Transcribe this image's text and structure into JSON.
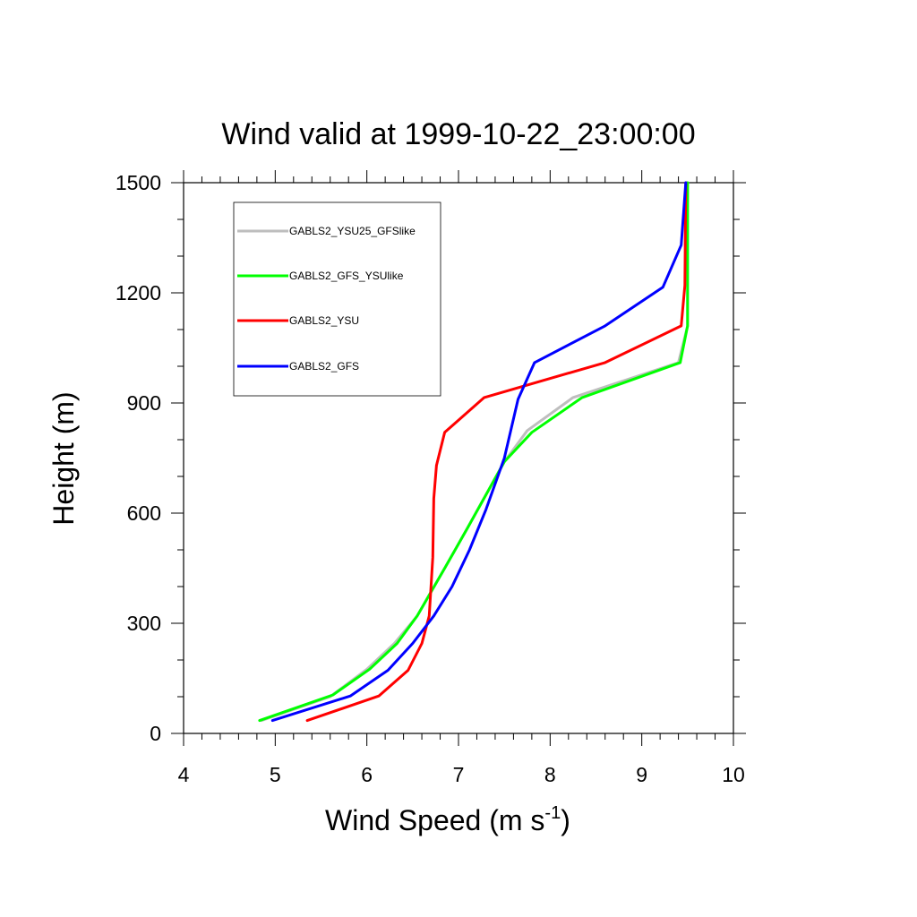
{
  "chart_data": {
    "type": "line",
    "title": "Wind valid at 1999-10-22_23:00:00",
    "xlabel": "Wind Speed (m s",
    "xlabel_superscript": "-1",
    "xlabel_suffix": ")",
    "ylabel": "Height (m)",
    "xlim": [
      4,
      10
    ],
    "ylim": [
      0,
      1500
    ],
    "xticks": [
      4,
      5,
      6,
      7,
      8,
      9,
      10
    ],
    "yticks": [
      0,
      300,
      600,
      900,
      1200,
      1500
    ],
    "xtick_labels": [
      "4",
      "5",
      "6",
      "7",
      "8",
      "9",
      "10"
    ],
    "ytick_labels": [
      "0",
      "300",
      "600",
      "900",
      "1200",
      "1500"
    ],
    "grid": false,
    "legend_position": "top-left",
    "series": [
      {
        "name": "GABLS2_YSU25_GFSlike",
        "color": "#bebebe",
        "points": [
          [
            4.85,
            35
          ],
          [
            5.6,
            100
          ],
          [
            6.0,
            175
          ],
          [
            6.3,
            245
          ],
          [
            6.55,
            320
          ],
          [
            6.85,
            450
          ],
          [
            7.1,
            560
          ],
          [
            7.3,
            650
          ],
          [
            7.5,
            740
          ],
          [
            7.75,
            825
          ],
          [
            8.25,
            915
          ],
          [
            9.4,
            1010
          ],
          [
            9.5,
            1110
          ],
          [
            9.5,
            1500
          ]
        ]
      },
      {
        "name": "GABLS2_GFS_YSUlike",
        "color": "#00ff00",
        "points": [
          [
            4.83,
            35
          ],
          [
            5.63,
            105
          ],
          [
            6.03,
            175
          ],
          [
            6.33,
            245
          ],
          [
            6.55,
            320
          ],
          [
            6.85,
            450
          ],
          [
            7.1,
            560
          ],
          [
            7.3,
            650
          ],
          [
            7.5,
            740
          ],
          [
            7.8,
            820
          ],
          [
            8.35,
            915
          ],
          [
            9.42,
            1010
          ],
          [
            9.5,
            1110
          ],
          [
            9.5,
            1500
          ]
        ]
      },
      {
        "name": "GABLS2_YSU",
        "color": "#ff0000",
        "points": [
          [
            5.35,
            35
          ],
          [
            6.13,
            102
          ],
          [
            6.45,
            172
          ],
          [
            6.6,
            245
          ],
          [
            6.68,
            320
          ],
          [
            6.72,
            480
          ],
          [
            6.73,
            640
          ],
          [
            6.76,
            730
          ],
          [
            6.85,
            820
          ],
          [
            7.28,
            915
          ],
          [
            8.6,
            1010
          ],
          [
            9.43,
            1110
          ],
          [
            9.47,
            1220
          ],
          [
            9.48,
            1500
          ]
        ]
      },
      {
        "name": "GABLS2_GFS",
        "color": "#0000ff",
        "points": [
          [
            4.97,
            35
          ],
          [
            5.82,
            102
          ],
          [
            6.23,
            172
          ],
          [
            6.5,
            245
          ],
          [
            6.73,
            320
          ],
          [
            6.93,
            400
          ],
          [
            7.12,
            500
          ],
          [
            7.3,
            610
          ],
          [
            7.5,
            750
          ],
          [
            7.65,
            910
          ],
          [
            7.83,
            1010
          ],
          [
            8.6,
            1110
          ],
          [
            9.23,
            1215
          ],
          [
            9.43,
            1330
          ],
          [
            9.48,
            1500
          ]
        ]
      }
    ]
  }
}
